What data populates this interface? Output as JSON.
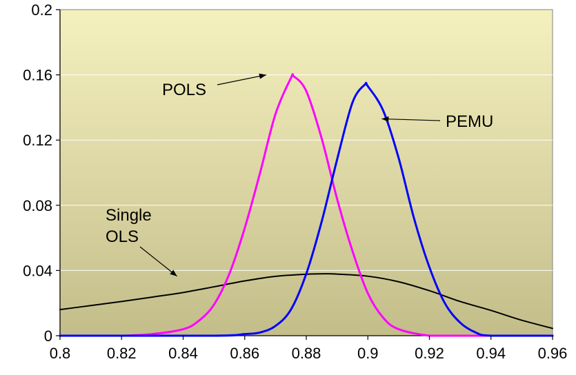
{
  "chart_data": {
    "type": "line",
    "title": "",
    "xlabel": "",
    "ylabel": "",
    "xlim": [
      0.8,
      0.96
    ],
    "ylim": [
      0,
      0.2
    ],
    "x_ticks": [
      "0.8",
      "0.82",
      "0.84",
      "0.86",
      "0.88",
      "0.9",
      "0.92",
      "0.94",
      "0.96"
    ],
    "y_ticks": [
      "0",
      "0.04",
      "0.08",
      "0.12",
      "0.16",
      "0.2"
    ],
    "grid": "horizontal",
    "legend": "none",
    "plot_background": {
      "top": "#f5f1be",
      "bottom": "#c3bd8a"
    },
    "series": [
      {
        "name": "POLS",
        "color": "#ff00ff",
        "x": [
          0.8,
          0.82,
          0.83,
          0.84,
          0.845,
          0.85,
          0.855,
          0.86,
          0.865,
          0.87,
          0.875,
          0.876,
          0.88,
          0.885,
          0.89,
          0.895,
          0.9,
          0.905,
          0.91,
          0.92,
          0.93,
          0.96
        ],
        "y": [
          0.0,
          0.0,
          0.001,
          0.004,
          0.009,
          0.019,
          0.038,
          0.066,
          0.1,
          0.136,
          0.158,
          0.159,
          0.15,
          0.121,
          0.084,
          0.052,
          0.026,
          0.011,
          0.004,
          0.0,
          0.0,
          0.0
        ]
      },
      {
        "name": "PEMU",
        "color": "#0000ff",
        "x": [
          0.8,
          0.85,
          0.86,
          0.865,
          0.87,
          0.875,
          0.88,
          0.885,
          0.89,
          0.895,
          0.899,
          0.9,
          0.905,
          0.91,
          0.915,
          0.92,
          0.925,
          0.93,
          0.935,
          0.94,
          0.96
        ],
        "y": [
          0.0,
          0.0,
          0.001,
          0.002,
          0.006,
          0.016,
          0.038,
          0.07,
          0.108,
          0.143,
          0.154,
          0.153,
          0.138,
          0.109,
          0.072,
          0.042,
          0.02,
          0.008,
          0.002,
          0.0,
          0.0
        ]
      },
      {
        "name": "Single OLS",
        "color": "#000000",
        "x": [
          0.8,
          0.81,
          0.82,
          0.83,
          0.84,
          0.85,
          0.86,
          0.87,
          0.88,
          0.886,
          0.89,
          0.9,
          0.91,
          0.92,
          0.93,
          0.94,
          0.95,
          0.96
        ],
        "y": [
          0.016,
          0.0185,
          0.021,
          0.0237,
          0.0265,
          0.03,
          0.0336,
          0.0364,
          0.0377,
          0.038,
          0.0378,
          0.0365,
          0.0331,
          0.0276,
          0.021,
          0.0155,
          0.0095,
          0.0045
        ]
      }
    ],
    "annotations": [
      {
        "label": "POLS",
        "text": "POLS",
        "arrow_to": [
          0.867,
          0.16
        ]
      },
      {
        "label": "PEMU",
        "text": "PEMU",
        "arrow_to": [
          0.9045,
          0.133
        ]
      },
      {
        "label": "Single OLS",
        "lines": [
          "Single",
          "OLS"
        ],
        "arrow_to": [
          0.838,
          0.0365
        ]
      }
    ]
  }
}
